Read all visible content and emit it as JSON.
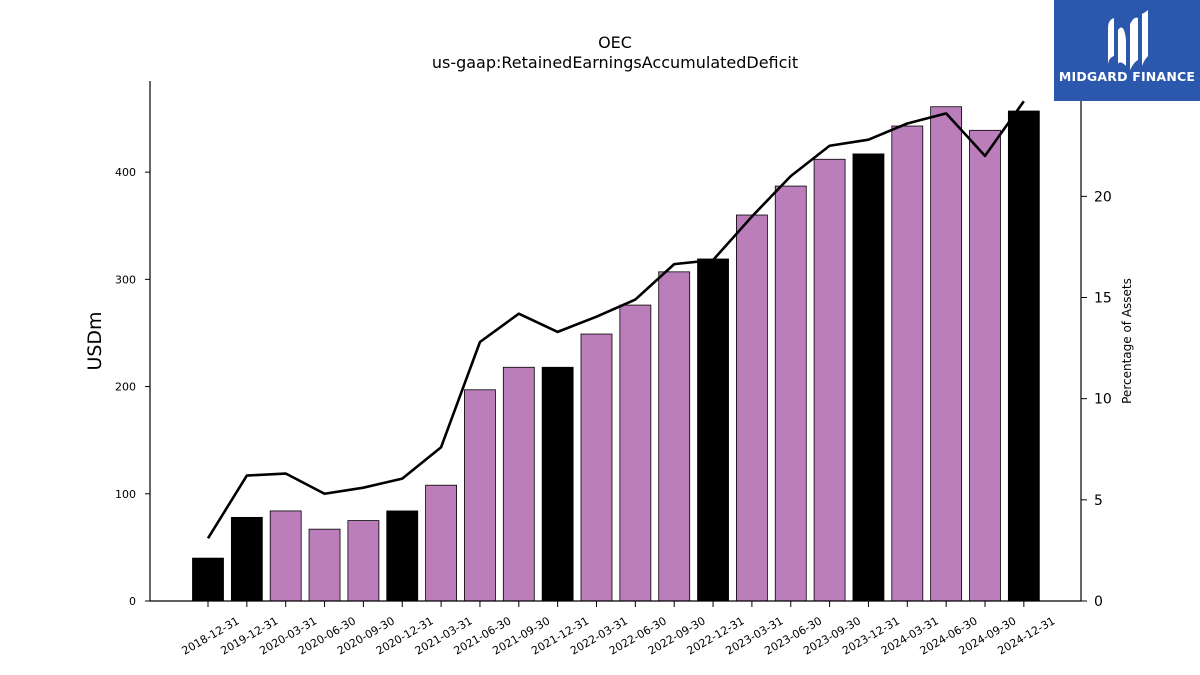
{
  "brand": {
    "name": "MIDGARD FINANCE",
    "bg_color": "#2b58ad",
    "icon": "midgard-logo-icon"
  },
  "chart_data": {
    "type": "bar",
    "title": "OEC",
    "subtitle": "us-gaap:RetainedEarningsAccumulatedDeficit",
    "ylabel": "USDm",
    "y2label": "Percentage of Assets",
    "ylim": [
      0,
      485
    ],
    "y2lim": [
      0,
      25.7
    ],
    "yticks": [
      0,
      100,
      200,
      300,
      400
    ],
    "y2ticks": [
      0,
      5,
      10,
      15,
      20
    ],
    "categories": [
      "2018-12-31",
      "2019-12-31",
      "2020-03-31",
      "2020-06-30",
      "2020-09-30",
      "2020-12-31",
      "2021-03-31",
      "2021-06-30",
      "2021-09-30",
      "2021-12-31",
      "2022-03-31",
      "2022-06-30",
      "2022-09-30",
      "2022-12-31",
      "2023-03-31",
      "2023-06-30",
      "2023-09-30",
      "2023-12-31",
      "2024-03-31",
      "2024-06-30",
      "2024-09-30",
      "2024-12-31"
    ],
    "series": [
      {
        "type": "bar",
        "values": [
          40,
          78,
          84,
          67,
          75,
          84,
          108,
          197,
          218,
          218,
          249,
          276,
          307,
          319,
          360,
          387,
          412,
          417,
          443,
          461,
          439,
          457
        ],
        "colors": [
          "#000000",
          "#000000",
          "#bb7ebb",
          "#bb7ebb",
          "#bb7ebb",
          "#000000",
          "#bb7ebb",
          "#bb7ebb",
          "#bb7ebb",
          "#000000",
          "#bb7ebb",
          "#bb7ebb",
          "#bb7ebb",
          "#000000",
          "#bb7ebb",
          "#bb7ebb",
          "#bb7ebb",
          "#000000",
          "#bb7ebb",
          "#bb7ebb",
          "#bb7ebb",
          "#000000"
        ]
      },
      {
        "type": "line",
        "axis": "right",
        "color": "#000000",
        "values": [
          3.1,
          6.2,
          6.3,
          5.3,
          5.6,
          6.05,
          7.6,
          12.8,
          14.2,
          13.3,
          14.05,
          14.9,
          16.65,
          16.85,
          19.0,
          21.0,
          22.5,
          22.8,
          23.6,
          24.1,
          22.0,
          24.7
        ]
      }
    ],
    "grid": false,
    "legend": "none"
  }
}
